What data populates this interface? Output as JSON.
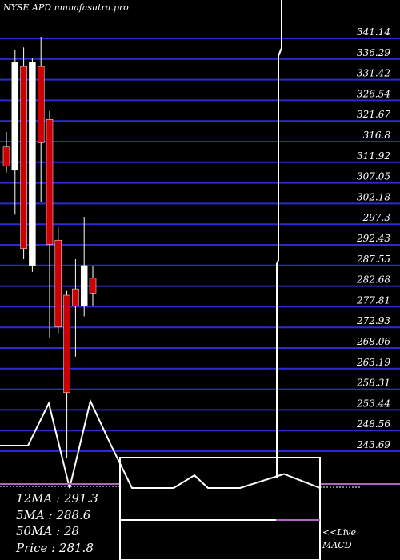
{
  "header": {
    "title": "NYSE APD munafasutra.pro"
  },
  "colors": {
    "background": "#000000",
    "grid": "#2b2bd6",
    "label": "#ffffff",
    "bull": "#ffffff",
    "bear": "#cc0000",
    "ma": "#ffffff",
    "macd": "#b066c0"
  },
  "chart_data": [
    {
      "type": "candlestick",
      "title": "NYSE APD munafasutra.pro",
      "ylim": [
        240,
        343
      ],
      "price_ticks": [
        "341.14",
        "336.29",
        "331.42",
        "326.54",
        "321.67",
        "316.8",
        "311.92",
        "307.05",
        "302.18",
        "297.3",
        "292.43",
        "287.55",
        "282.68",
        "277.81",
        "272.93",
        "268.06",
        "263.19",
        "258.31",
        "253.44",
        "248.56",
        "243.69"
      ],
      "candles": [
        {
          "open": 314.0,
          "close": 309.5,
          "high": 317.5,
          "low": 308.0
        },
        {
          "open": 308.5,
          "close": 334.0,
          "high": 337.0,
          "low": 298.0
        },
        {
          "open": 333.0,
          "close": 290.0,
          "high": 337.5,
          "low": 287.5
        },
        {
          "open": 286.0,
          "close": 334.0,
          "high": 335.0,
          "low": 284.5
        },
        {
          "open": 333.0,
          "close": 315.0,
          "high": 340.0,
          "low": 301.0
        },
        {
          "open": 320.5,
          "close": 291.0,
          "high": 322.5,
          "low": 269.0
        },
        {
          "open": 292.0,
          "close": 271.5,
          "high": 295.0,
          "low": 270.0
        },
        {
          "open": 279.0,
          "close": 256.0,
          "high": 280.0,
          "low": 240.5
        },
        {
          "open": 280.5,
          "close": 276.5,
          "high": 287.5,
          "low": 264.5
        },
        {
          "open": 276.5,
          "close": 286.0,
          "high": 297.5,
          "low": 274.0
        },
        {
          "open": 283.0,
          "close": 279.5,
          "high": 286.0,
          "low": 276.5
        }
      ],
      "ma_line": [
        [
          0,
          243.5
        ],
        [
          1,
          243.5
        ],
        [
          2,
          253.5
        ],
        [
          3,
          233.5
        ],
        [
          4,
          254.0
        ],
        [
          5,
          243.5
        ],
        [
          6,
          233.5
        ],
        [
          7,
          233.5
        ],
        [
          8,
          233.5
        ],
        [
          9,
          236.5
        ],
        [
          10,
          233.5
        ]
      ]
    },
    {
      "type": "line",
      "title": "MACD",
      "series": [
        {
          "values": [
            0,
            0,
            0,
            0,
            0,
            0,
            0,
            0,
            0,
            0,
            0
          ]
        }
      ]
    }
  ],
  "legend": {
    "ma12": "12MA : 291.3",
    "ma5": "5MA : 288.6",
    "ma50": "50MA : 28",
    "price": "Price   : 281.8"
  },
  "macd_panel": {
    "live_label": "<<Live",
    "macd_label": "MACD"
  }
}
